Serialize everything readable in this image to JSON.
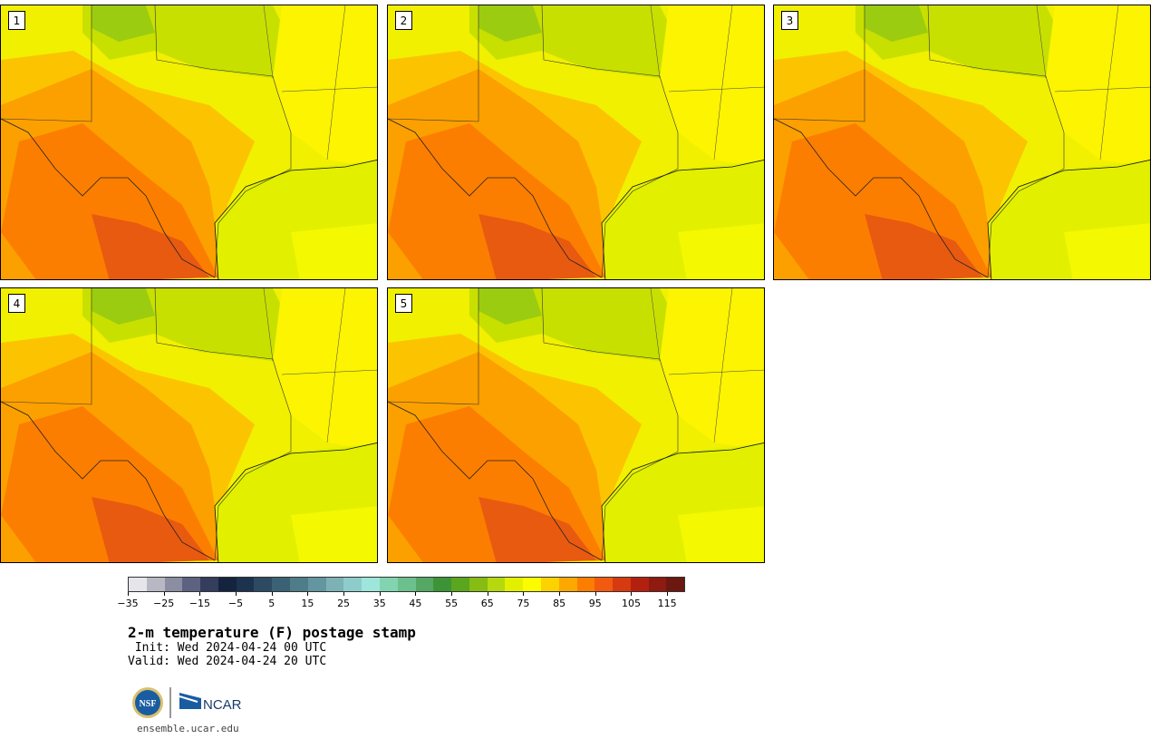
{
  "panels": [
    {
      "label": "1"
    },
    {
      "label": "2"
    },
    {
      "label": "3"
    },
    {
      "label": "4"
    },
    {
      "label": "5"
    }
  ],
  "colorbar": {
    "colors": [
      "#e6e6ea",
      "#b8b8c4",
      "#8a8ea0",
      "#5c6280",
      "#353d5c",
      "#14233e",
      "#1c3350",
      "#2c4a62",
      "#3b6274",
      "#4e7c88",
      "#6396a0",
      "#7cb2b6",
      "#8ecccc",
      "#9ee6dc",
      "#82d4b0",
      "#6cc08c",
      "#54a864",
      "#3c9436",
      "#5aa61e",
      "#86bc14",
      "#b6d80e",
      "#e2f000",
      "#fcfc00",
      "#fcd200",
      "#fca800",
      "#fc7e00",
      "#f25a10",
      "#d63a10",
      "#b42010",
      "#8e1a10",
      "#6a1810"
    ],
    "tick_labels": [
      "−35",
      "−25",
      "−15",
      "−5",
      "5",
      "15",
      "25",
      "35",
      "45",
      "55",
      "65",
      "75",
      "85",
      "95",
      "105",
      "115"
    ]
  },
  "title": "2-m temperature (F) postage stamp",
  "init_line": " Init: Wed 2024-04-24 00 UTC",
  "valid_line": "Valid: Wed 2024-04-24 20 UTC",
  "logos": {
    "nsf": "NSF",
    "ncar": "NCAR"
  },
  "url": "ensemble.ucar.edu"
}
